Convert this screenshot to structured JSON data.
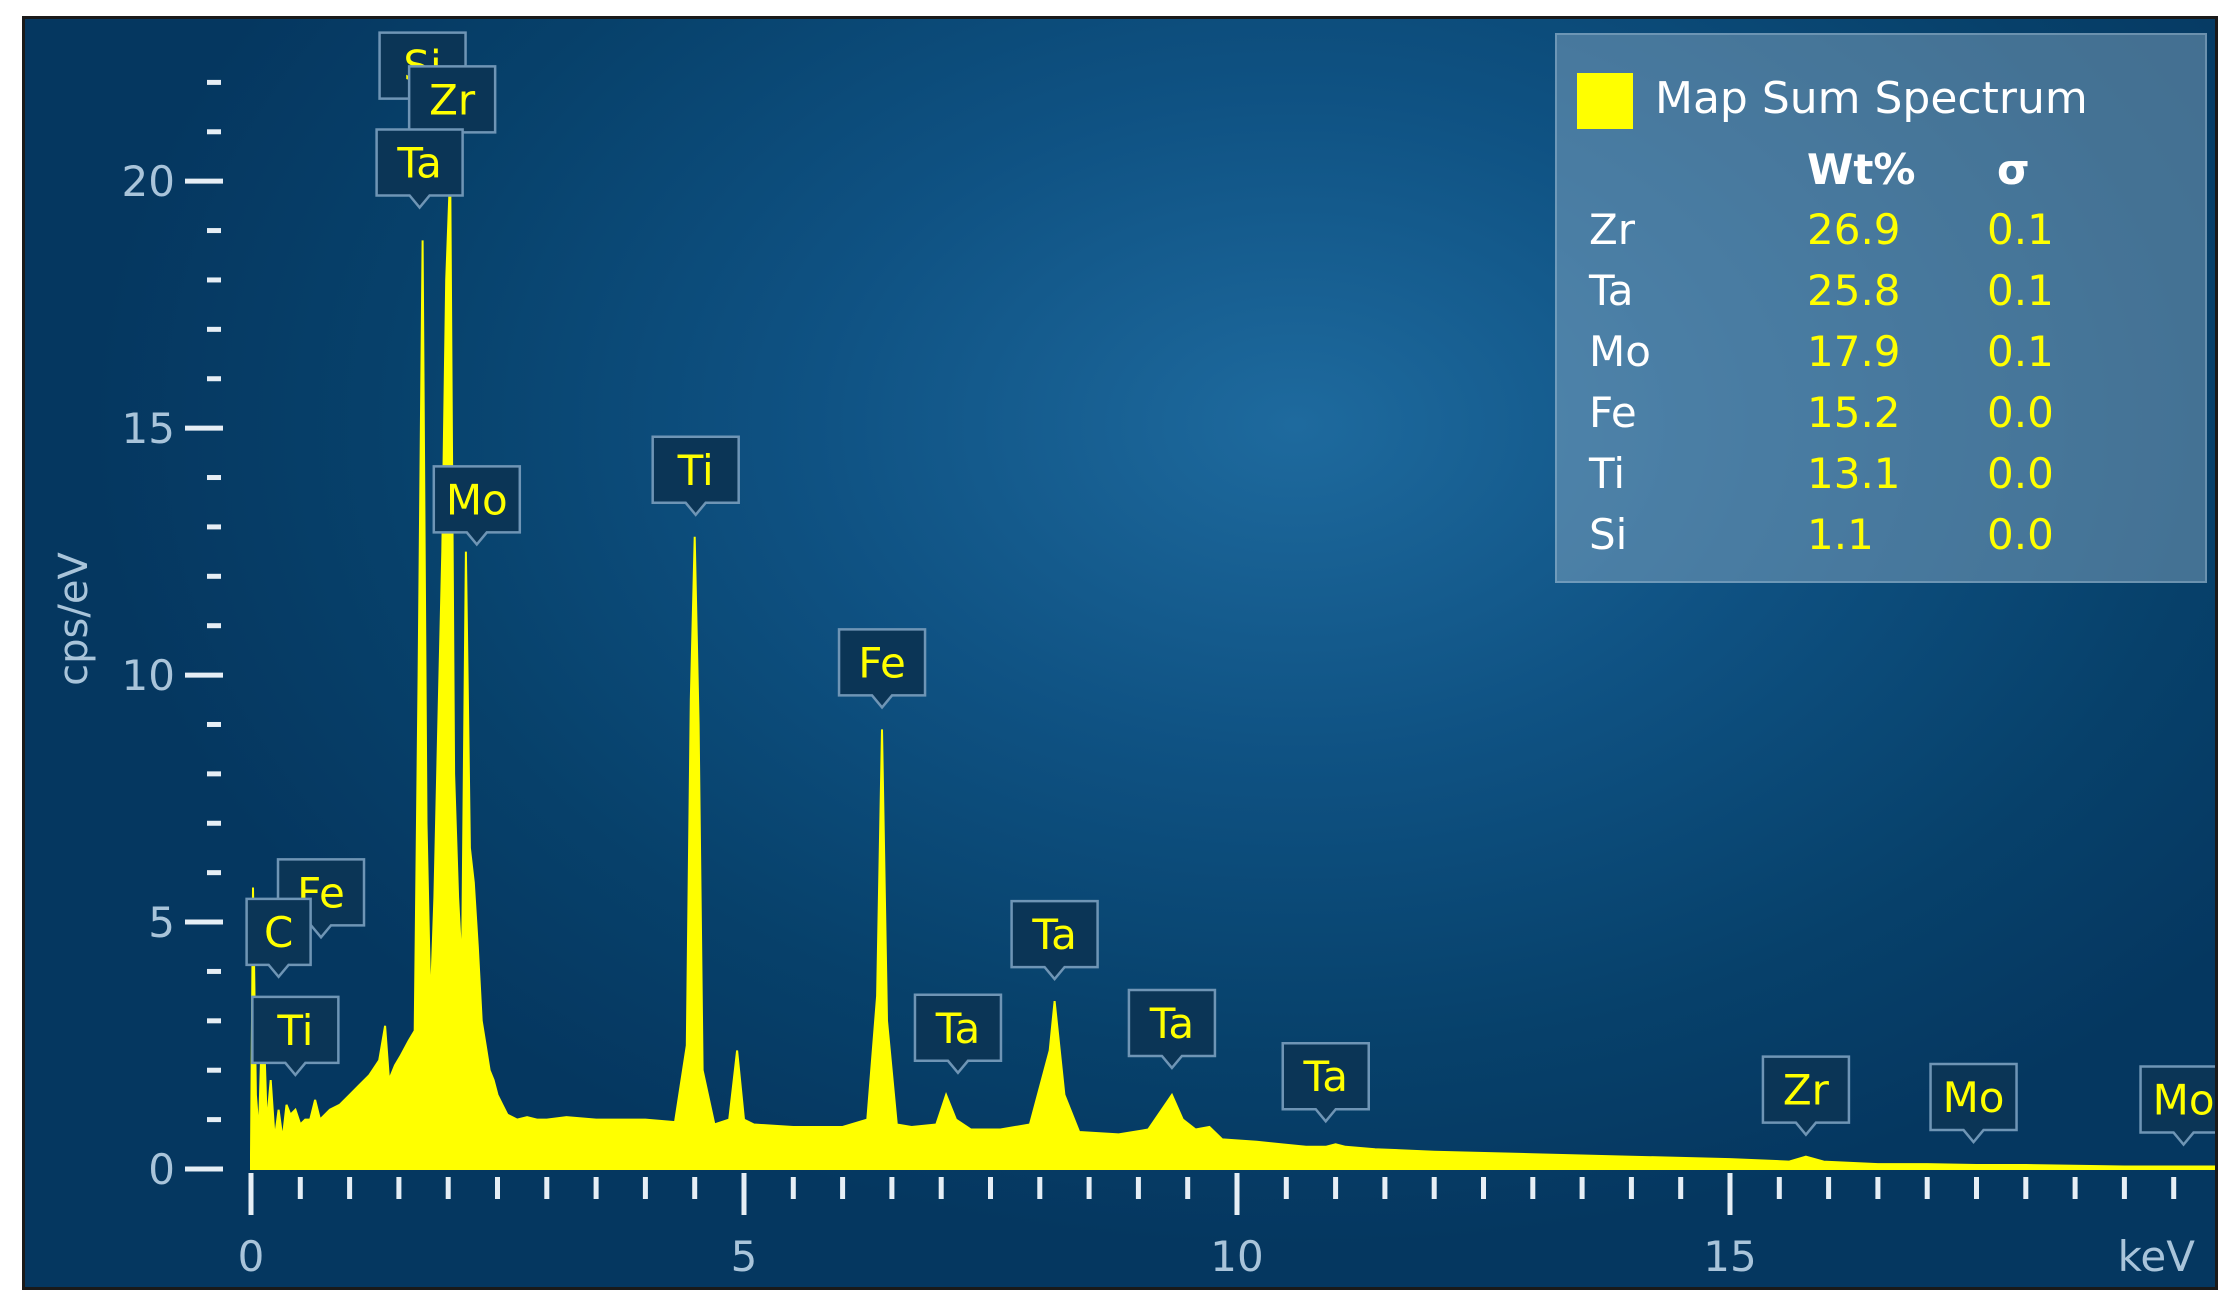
{
  "chart_data": {
    "type": "line",
    "xlabel": "keV",
    "ylabel": "cps/eV",
    "xlim": [
      0,
      20
    ],
    "ylim": [
      0,
      23
    ],
    "x_ticks": [
      "0",
      "5",
      "10",
      "15"
    ],
    "y_ticks": [
      "0",
      "5",
      "10",
      "15",
      "20"
    ],
    "series": [
      {
        "name": "Map Sum Spectrum",
        "color": "#ffff00",
        "x": [
          0.0,
          0.02,
          0.05,
          0.08,
          0.12,
          0.16,
          0.2,
          0.24,
          0.28,
          0.32,
          0.36,
          0.4,
          0.45,
          0.5,
          0.55,
          0.6,
          0.65,
          0.7,
          0.75,
          0.8,
          0.9,
          1.0,
          1.1,
          1.2,
          1.3,
          1.36,
          1.4,
          1.46,
          1.52,
          1.6,
          1.66,
          1.7,
          1.74,
          1.78,
          1.82,
          1.86,
          1.9,
          1.94,
          1.98,
          2.02,
          2.06,
          2.1,
          2.14,
          2.18,
          2.22,
          2.26,
          2.3,
          2.34,
          2.38,
          2.42,
          2.46,
          2.5,
          2.55,
          2.6,
          2.65,
          2.7,
          2.8,
          2.9,
          3.0,
          3.2,
          3.5,
          4.0,
          4.3,
          4.42,
          4.46,
          4.5,
          4.54,
          4.58,
          4.7,
          4.85,
          4.93,
          5.0,
          5.1,
          5.5,
          6.0,
          6.25,
          6.35,
          6.4,
          6.45,
          6.55,
          6.7,
          6.95,
          7.05,
          7.15,
          7.3,
          7.6,
          7.9,
          8.1,
          8.15,
          8.25,
          8.4,
          8.8,
          9.1,
          9.34,
          9.45,
          9.58,
          9.72,
          9.85,
          10.2,
          10.7,
          10.9,
          11.0,
          11.1,
          11.4,
          12.0,
          13.0,
          14.0,
          15.0,
          15.6,
          15.77,
          15.95,
          16.5,
          17.0,
          17.5,
          18.0,
          19.0,
          20.0
        ],
        "y": [
          0.3,
          5.7,
          1.5,
          0.7,
          3.5,
          0.9,
          1.8,
          0.6,
          1.2,
          0.6,
          1.3,
          1.1,
          1.2,
          0.9,
          1.0,
          1.0,
          1.4,
          1.0,
          1.1,
          1.2,
          1.3,
          1.5,
          1.7,
          1.9,
          2.2,
          2.9,
          1.8,
          2.1,
          2.3,
          2.6,
          2.8,
          10.0,
          18.8,
          7.0,
          3.2,
          5.5,
          9.0,
          12.5,
          18.0,
          20.2,
          8.0,
          5.5,
          4.0,
          12.5,
          6.5,
          5.8,
          4.5,
          3.0,
          2.5,
          2.0,
          1.8,
          1.5,
          1.3,
          1.1,
          1.05,
          1.0,
          1.05,
          1.0,
          1.0,
          1.05,
          1.0,
          1.0,
          0.95,
          2.5,
          9.5,
          12.8,
          9.0,
          2.0,
          0.9,
          1.0,
          2.4,
          1.0,
          0.9,
          0.85,
          0.85,
          1.0,
          3.5,
          8.9,
          3.0,
          0.9,
          0.85,
          0.9,
          1.5,
          1.0,
          0.8,
          0.8,
          0.9,
          2.4,
          3.4,
          1.5,
          0.75,
          0.7,
          0.8,
          1.5,
          1.0,
          0.8,
          0.85,
          0.6,
          0.55,
          0.45,
          0.45,
          0.5,
          0.45,
          0.4,
          0.35,
          0.3,
          0.25,
          0.2,
          0.15,
          0.25,
          0.15,
          0.1,
          0.1,
          0.08,
          0.08,
          0.05,
          0.05
        ]
      }
    ],
    "annotations": [
      {
        "label": "Si",
        "x": 1.74,
        "y": 20.7
      },
      {
        "label": "Zr",
        "x": 2.04,
        "y": 20.3
      },
      {
        "label": "Ta",
        "x": 1.71,
        "y": 18.9
      },
      {
        "label": "Mo",
        "x": 2.29,
        "y": 12.2
      },
      {
        "label": "Ti",
        "x": 4.51,
        "y": 12.8
      },
      {
        "label": "Fe",
        "x": 6.4,
        "y": 8.9
      },
      {
        "label": "Fe",
        "x": 0.71,
        "y": 3.8
      },
      {
        "label": "C",
        "x": 0.28,
        "y": 3.0
      },
      {
        "label": "Ti",
        "x": 0.45,
        "y": 1.5
      },
      {
        "label": "Ta",
        "x": 7.17,
        "y": 1.3
      },
      {
        "label": "Ta",
        "x": 8.15,
        "y": 3.4
      },
      {
        "label": "Ta",
        "x": 9.34,
        "y": 1.6
      },
      {
        "label": "Ta",
        "x": 10.9,
        "y": 0.4
      },
      {
        "label": "Zr",
        "x": 15.77,
        "y": 0.25
      },
      {
        "label": "Mo",
        "x": 17.47,
        "y": 0.1
      },
      {
        "label": "Mo",
        "x": 19.6,
        "y": 0.05
      }
    ],
    "grid": false,
    "legend_position": "top-right"
  },
  "legend": {
    "title": "Map Sum Spectrum",
    "col_wt": "Wt%",
    "col_sigma": "σ",
    "rows": [
      {
        "el": "Zr",
        "wt": "26.9",
        "sigma": "0.1"
      },
      {
        "el": "Ta",
        "wt": "25.8",
        "sigma": "0.1"
      },
      {
        "el": "Mo",
        "wt": "17.9",
        "sigma": "0.1"
      },
      {
        "el": "Fe",
        "wt": "15.2",
        "sigma": "0.0"
      },
      {
        "el": "Ti",
        "wt": "13.1",
        "sigma": "0.0"
      },
      {
        "el": "Si",
        "wt": "1.1",
        "sigma": "0.0"
      }
    ]
  }
}
